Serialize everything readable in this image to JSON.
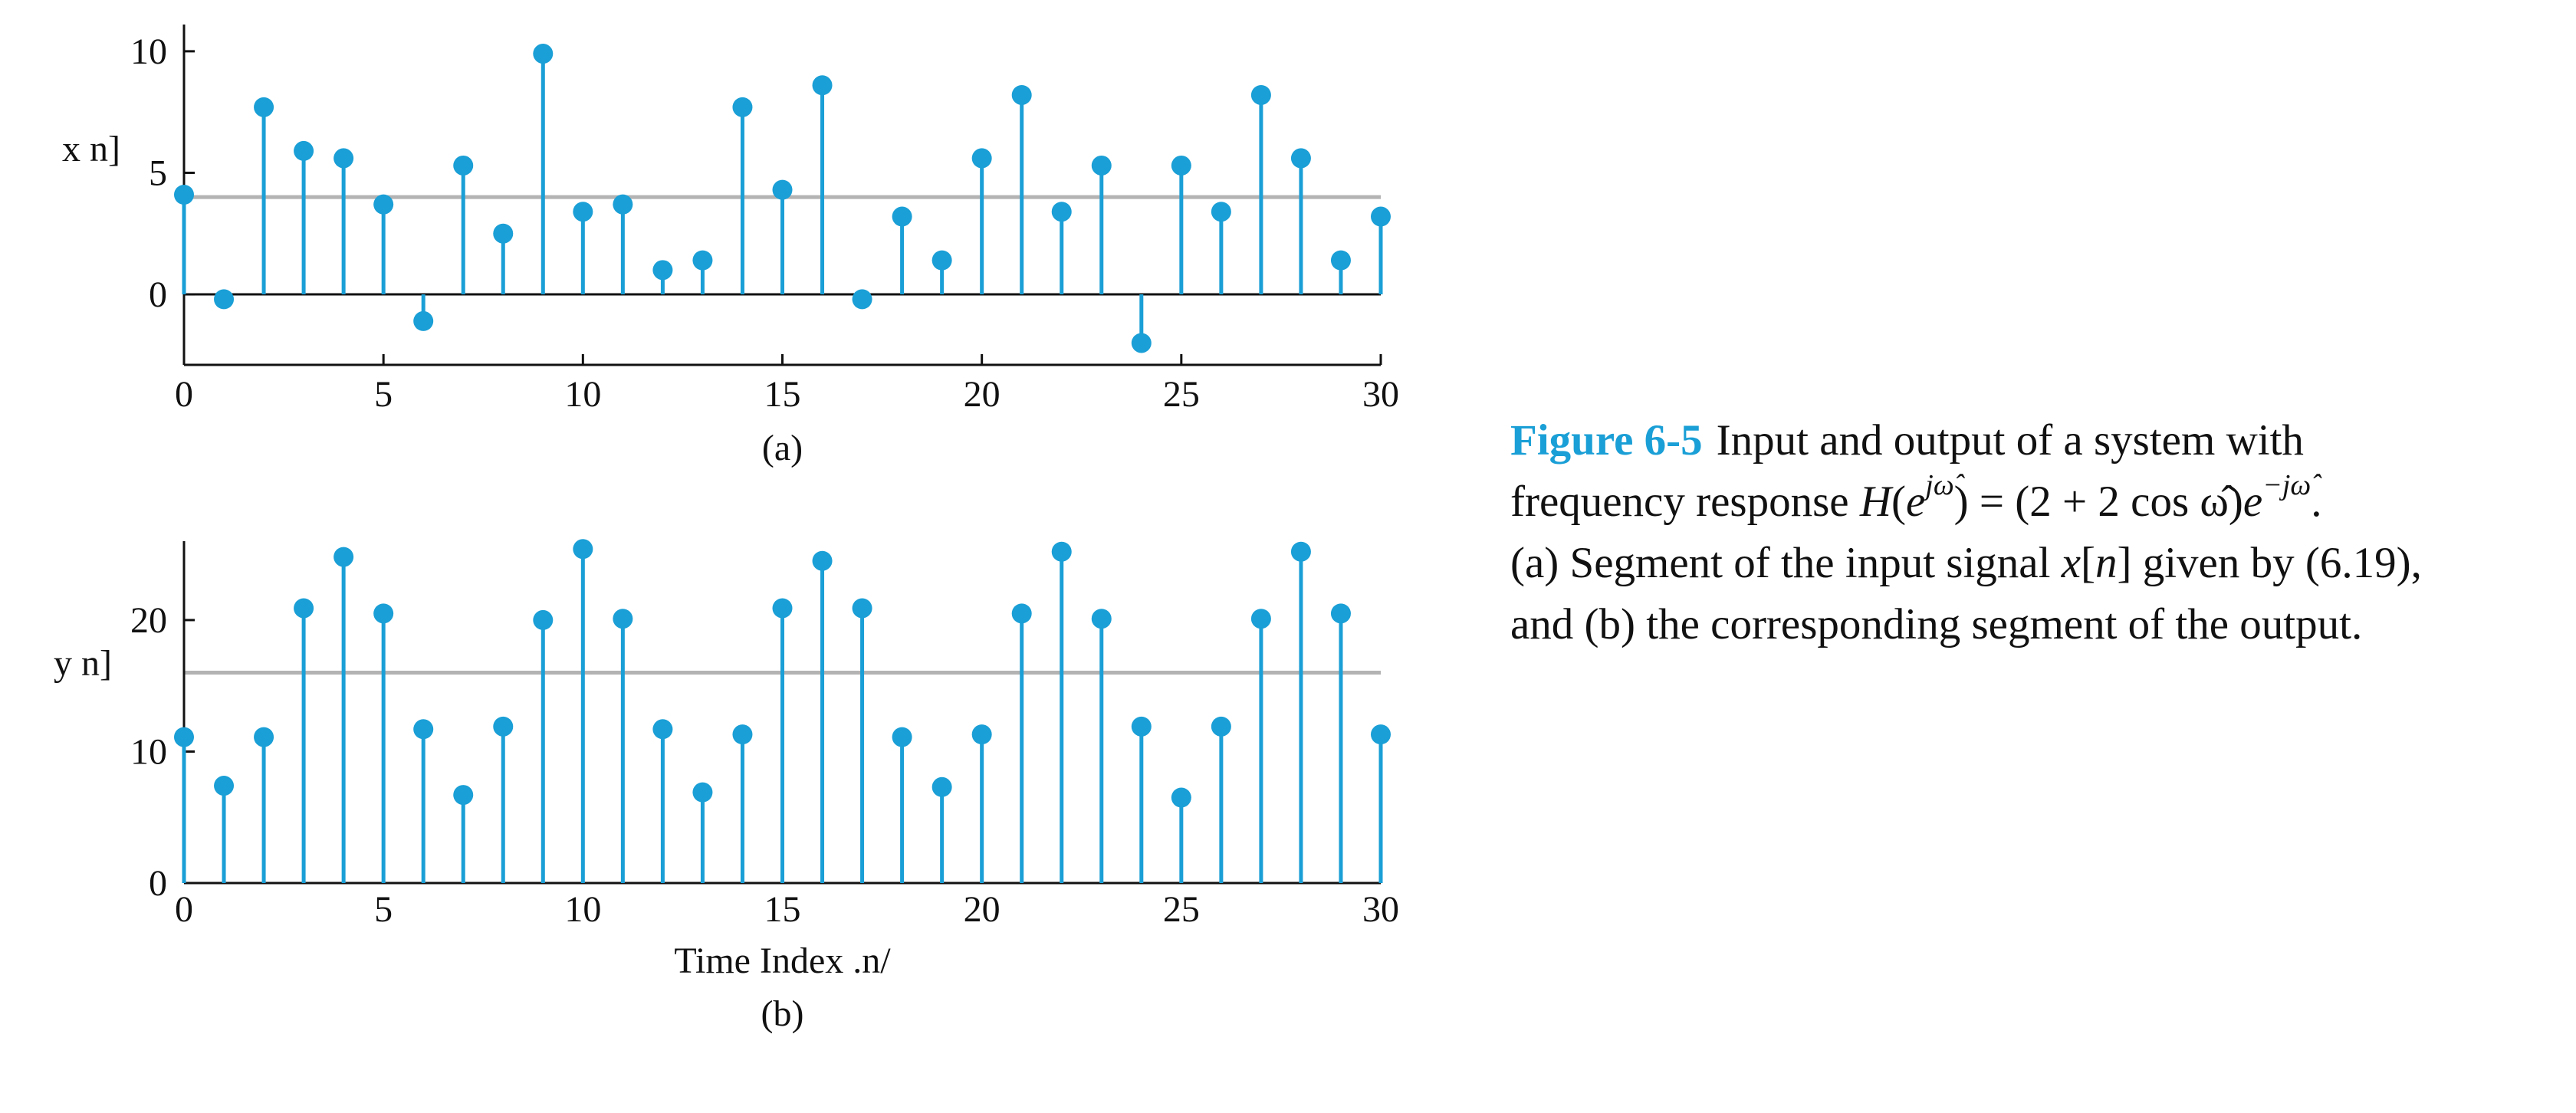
{
  "chart_data": [
    {
      "type": "stem",
      "color": "#1a9fd6",
      "ylabel": "x n]",
      "subcaption": "(a)",
      "x": [
        0,
        1,
        2,
        3,
        4,
        5,
        6,
        7,
        8,
        9,
        10,
        11,
        12,
        13,
        14,
        15,
        16,
        17,
        18,
        19,
        20,
        21,
        22,
        23,
        24,
        25,
        26,
        27,
        28,
        29,
        30
      ],
      "values": [
        4.1,
        -0.2,
        7.7,
        5.9,
        5.6,
        3.7,
        -1.1,
        5.3,
        2.5,
        9.9,
        3.4,
        3.7,
        1.0,
        1.4,
        7.7,
        4.3,
        8.6,
        -0.2,
        3.2,
        1.4,
        5.6,
        8.2,
        3.4,
        5.3,
        -2.0,
        5.3,
        3.4,
        8.2,
        5.6,
        1.4,
        3.2
      ],
      "xlim": [
        0,
        30
      ],
      "xticks": [
        0,
        5,
        10,
        15,
        20,
        25,
        30
      ],
      "ylim": [
        -2.9,
        11.1
      ],
      "yticks": [
        0,
        5,
        10
      ],
      "reference_line": 4,
      "reference_color": "#b3b3b3",
      "zero_line": true
    },
    {
      "type": "stem",
      "color": "#1a9fd6",
      "ylabel": "y n]",
      "xlabel": "Time Index .n/",
      "subcaption": "(b)",
      "x": [
        0,
        1,
        2,
        3,
        4,
        5,
        6,
        7,
        8,
        9,
        10,
        11,
        12,
        13,
        14,
        15,
        16,
        17,
        18,
        19,
        20,
        21,
        22,
        23,
        24,
        25,
        26,
        27,
        28,
        29,
        30
      ],
      "values": [
        11.1,
        7.4,
        11.1,
        20.9,
        24.8,
        20.5,
        11.7,
        6.7,
        11.9,
        20.0,
        25.4,
        20.1,
        11.7,
        6.9,
        11.3,
        20.9,
        24.5,
        20.9,
        11.1,
        7.3,
        11.3,
        20.5,
        25.2,
        20.1,
        11.9,
        6.5,
        11.9,
        20.1,
        25.2,
        20.5,
        11.3
      ],
      "xlim": [
        0,
        30
      ],
      "xticks": [
        0,
        5,
        10,
        15,
        20,
        25,
        30
      ],
      "ylim": [
        0,
        26
      ],
      "yticks": [
        0,
        10,
        20
      ],
      "reference_line": 16,
      "reference_color": "#b3b3b3",
      "zero_line": false
    }
  ],
  "caption": {
    "label": "Figure 6-5",
    "label_color": "#1a9fd6",
    "lines": [
      [
        {
          "text": "Input and output of a system with",
          "style": "plain"
        }
      ],
      [
        {
          "text": "frequency response ",
          "style": "plain"
        },
        {
          "text": "H",
          "style": "italic"
        },
        {
          "text": "(",
          "style": "plain"
        },
        {
          "text": "e",
          "style": "italic"
        },
        {
          "text": "jω̂",
          "style": "sup"
        },
        {
          "text": ") = (2 + 2 cos ω̂)",
          "style": "plain"
        },
        {
          "text": "e",
          "style": "italic"
        },
        {
          "text": "−jω̂",
          "style": "sup"
        },
        {
          "text": ".",
          "style": "plain"
        }
      ],
      [
        {
          "text": "(a) Segment of the input signal ",
          "style": "plain"
        },
        {
          "text": "x",
          "style": "italic"
        },
        {
          "text": "[",
          "style": "plain"
        },
        {
          "text": "n",
          "style": "italic"
        },
        {
          "text": "] given by (6.19),",
          "style": "plain"
        }
      ],
      [
        {
          "text": "and (b) the corresponding segment of the output.",
          "style": "plain"
        }
      ]
    ]
  }
}
